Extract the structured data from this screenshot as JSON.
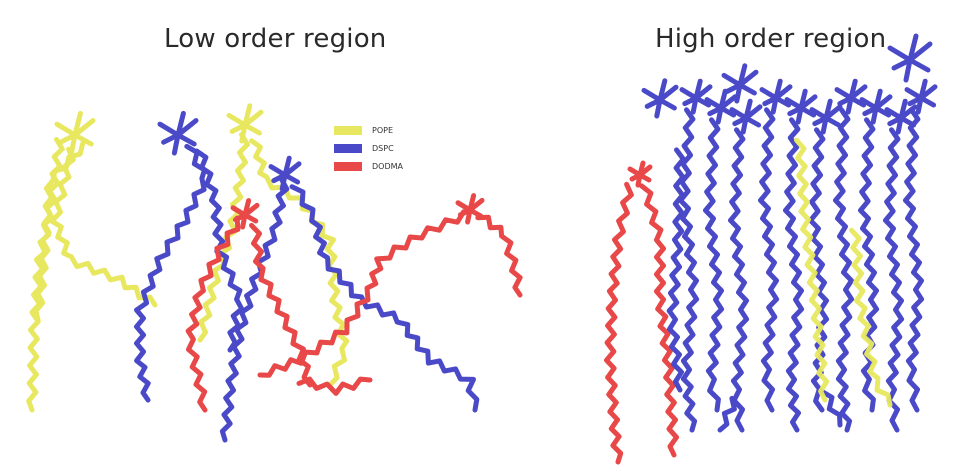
{
  "titles": {
    "left": "Low order region",
    "right": "High order region"
  },
  "legend": [
    {
      "label": "POPE",
      "color": "#e8e860"
    },
    {
      "label": "DSPC",
      "color": "#4a4ac8"
    },
    {
      "label": "DODMA",
      "color": "#e84848"
    }
  ],
  "colors": {
    "pope": "#e8e860",
    "dspc": "#4a4ac8",
    "dodma": "#e84848"
  }
}
